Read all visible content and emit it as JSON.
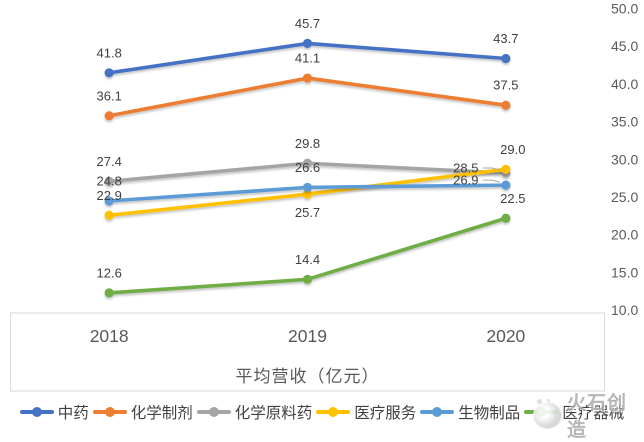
{
  "watermark": {
    "text": "火石创造",
    "logo_icon": "huoshi-circle-logo-icon"
  },
  "chart_data": {
    "type": "line",
    "title": "",
    "xlabel": "平均营收（亿元）",
    "categories": [
      "2018",
      "2019",
      "2020"
    ],
    "series": [
      {
        "name": "中药",
        "color": "#4472C4",
        "values": [
          41.8,
          45.7,
          43.7
        ],
        "label_pos": [
          "above",
          "above",
          "above"
        ]
      },
      {
        "name": "化学制剂",
        "color": "#ED7D31",
        "values": [
          36.1,
          41.1,
          37.5
        ],
        "label_pos": [
          "above",
          "above",
          "above"
        ]
      },
      {
        "name": "化学原料药",
        "color": "#A5A5A5",
        "values": [
          27.4,
          29.8,
          28.5
        ],
        "label_pos": [
          "above",
          "above",
          "left"
        ]
      },
      {
        "name": "医疗服务",
        "color": "#FFC000",
        "values": [
          22.9,
          25.7,
          29.0
        ],
        "label_pos": [
          "above",
          "below",
          "above-right"
        ]
      },
      {
        "name": "生物制品",
        "color": "#5B9BD5",
        "values": [
          24.8,
          26.6,
          26.9
        ],
        "label_pos": [
          "above",
          "above",
          "left"
        ]
      },
      {
        "name": "医疗器械",
        "color": "#70AD47",
        "values": [
          12.6,
          14.4,
          22.5
        ],
        "label_pos": [
          "above",
          "above",
          "above-right"
        ]
      }
    ],
    "y_axis": {
      "side": "right",
      "min": 10,
      "max": 50,
      "step": 5,
      "tick_labels": [
        "50.0",
        "45.0",
        "40.0",
        "35.0",
        "30.0",
        "25.0",
        "20.0",
        "15.0",
        "10.0"
      ]
    },
    "legend_position": "bottom",
    "grid": false,
    "data_label_decimals": 1,
    "colors": {
      "data_label": "#404040",
      "axis_text": "#595959",
      "border": "#D9D9D9",
      "leader_line": "#A6A6A6"
    }
  }
}
